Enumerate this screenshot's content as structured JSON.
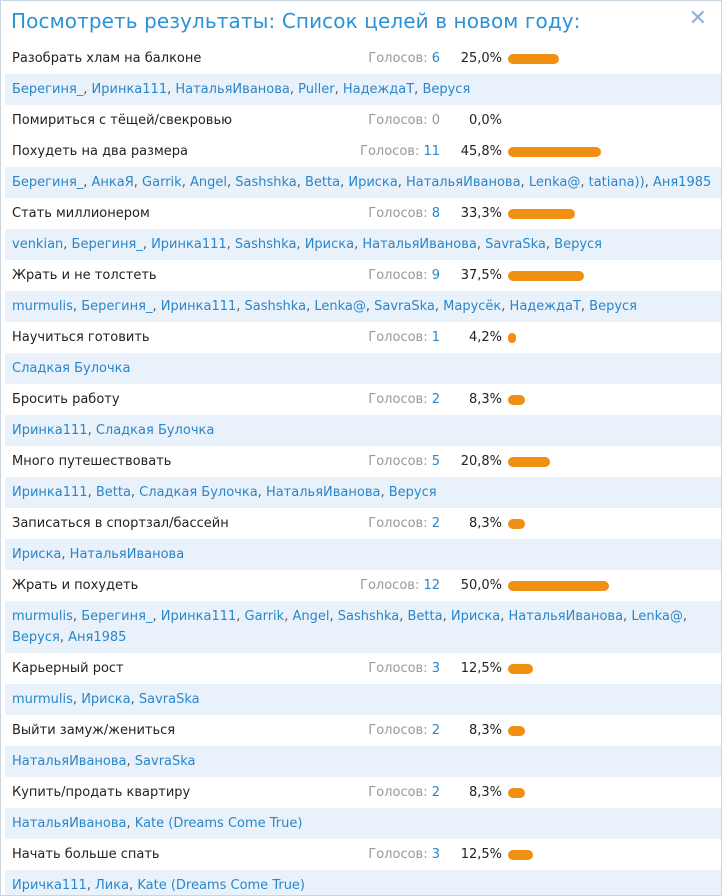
{
  "dialog": {
    "title": "Посмотреть результаты: Список целей в новом году:",
    "close_icon": "close-icon",
    "accent": "#2a93d8",
    "bar_color": "#f08f12"
  },
  "votes_label": "Голосов:",
  "goals": [
    {
      "label": "Разобрать хлам на балконе",
      "votes": "6",
      "percent": "25,0%",
      "share": 25.0,
      "voters": [
        "Берегиня_",
        "Иринка111",
        "НатальяИванова",
        "Puller",
        "НадеждаТ",
        "Веруся"
      ]
    },
    {
      "label": "Помириться с тёщей/свекровью",
      "votes": "0",
      "percent": "0,0%",
      "share": 0,
      "voters": []
    },
    {
      "label": "Похудеть на два размера",
      "votes": "11",
      "percent": "45,8%",
      "share": 45.8,
      "voters": [
        "Берегиня_",
        "АнкаЯ",
        "Garrik",
        "Angel",
        "Sashshka",
        "Betta",
        "Ириска",
        "НатальяИванова",
        "Lenka@",
        "tatiana))",
        "Аня1985"
      ]
    },
    {
      "label": "Стать миллионером",
      "votes": "8",
      "percent": "33,3%",
      "share": 33.3,
      "voters": [
        "venkian",
        "Берегиня_",
        "Иринка111",
        "Sashshka",
        "Ириска",
        "НатальяИванова",
        "SavraSka",
        "Веруся"
      ]
    },
    {
      "label": "Жрать и не толстеть",
      "votes": "9",
      "percent": "37,5%",
      "share": 37.5,
      "voters": [
        "murmulis",
        "Берегиня_",
        "Иринка111",
        "Sashshka",
        "Lenka@",
        "SavraSka",
        "Марусёк",
        "НадеждаТ",
        "Веруся"
      ]
    },
    {
      "label": "Научиться готовить",
      "votes": "1",
      "percent": "4,2%",
      "share": 4.2,
      "voters": [
        "Сладкая Булочка"
      ]
    },
    {
      "label": "Бросить работу",
      "votes": "2",
      "percent": "8,3%",
      "share": 8.3,
      "voters": [
        "Иринка111",
        "Сладкая Булочка"
      ]
    },
    {
      "label": "Много путешествовать",
      "votes": "5",
      "percent": "20,8%",
      "share": 20.8,
      "voters": [
        "Иринка111",
        "Betta",
        "Сладкая Булочка",
        "НатальяИванова",
        "Веруся"
      ]
    },
    {
      "label": "Записаться в спортзал/бассейн",
      "votes": "2",
      "percent": "8,3%",
      "share": 8.3,
      "voters": [
        "Ириска",
        "НатальяИванова"
      ]
    },
    {
      "label": "Жрать и похудеть",
      "votes": "12",
      "percent": "50,0%",
      "share": 50.0,
      "voters": [
        "murmulis",
        "Берегиня_",
        "Иринка111",
        "Garrik",
        "Angel",
        "Sashshka",
        "Betta",
        "Ириска",
        "НатальяИванова",
        "Lenka@",
        "Веруся",
        "Аня1985"
      ]
    },
    {
      "label": "Карьерный рост",
      "votes": "3",
      "percent": "12,5%",
      "share": 12.5,
      "voters": [
        "murmulis",
        "Ириска",
        "SavraSka"
      ]
    },
    {
      "label": "Выйти замуж/жениться",
      "votes": "2",
      "percent": "8,3%",
      "share": 8.3,
      "voters": [
        "НатальяИванова",
        "SavraSka"
      ]
    },
    {
      "label": "Купить/продать квартиру",
      "votes": "2",
      "percent": "8,3%",
      "share": 8.3,
      "voters": [
        "НатальяИванова",
        "Kate (Dreams Come True)"
      ]
    },
    {
      "label": "Начать больше спать",
      "votes": "3",
      "percent": "12,5%",
      "share": 12.5,
      "voters": [
        "Иричка111",
        "Лика",
        "Kate (Dreams Come True)"
      ]
    }
  ]
}
